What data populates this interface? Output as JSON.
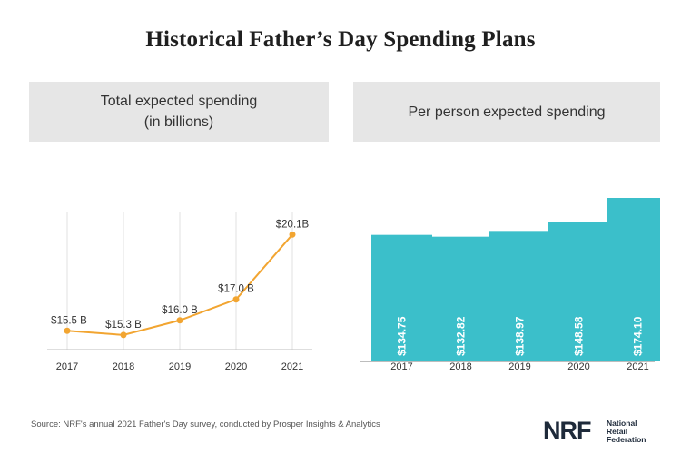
{
  "title": "Historical Father’s Day Spending Plans",
  "left_panel": {
    "line1": "Total expected spending",
    "line2": "(in billions)"
  },
  "right_panel": {
    "line1": "Per person expected spending"
  },
  "source": "Source: NRF's annual 2021 Father's Day survey, conducted by Prosper Insights & Analytics",
  "logo": {
    "mark": "NRF",
    "line1": "National",
    "line2": "Retail",
    "line3": "Federation"
  },
  "colors": {
    "line": "#f2a531",
    "bar": "#3bbfca",
    "grid": "#e2e2e2",
    "axis": "#bdbdbd"
  },
  "chart_data": [
    {
      "type": "line",
      "title": "Total expected spending (in billions)",
      "categories": [
        "2017",
        "2018",
        "2019",
        "2020",
        "2021"
      ],
      "values": [
        15.5,
        15.3,
        16.0,
        17.0,
        20.1
      ],
      "data_labels": [
        "$15.5 B",
        "$15.3 B",
        "$16.0 B",
        "$17.0 B",
        "$20.1B"
      ],
      "ylim": [
        14.6,
        21.2
      ],
      "grid": "vertical"
    },
    {
      "type": "bar",
      "title": "Per person expected spending",
      "categories": [
        "2017",
        "2018",
        "2019",
        "2020",
        "2021"
      ],
      "values": [
        134.75,
        132.82,
        138.97,
        148.58,
        174.1
      ],
      "data_labels": [
        "$134.75",
        "$132.82",
        "$138.97",
        "$148.58",
        "$174.10"
      ],
      "ylim": [
        0,
        174.1
      ],
      "grid": "none"
    }
  ]
}
